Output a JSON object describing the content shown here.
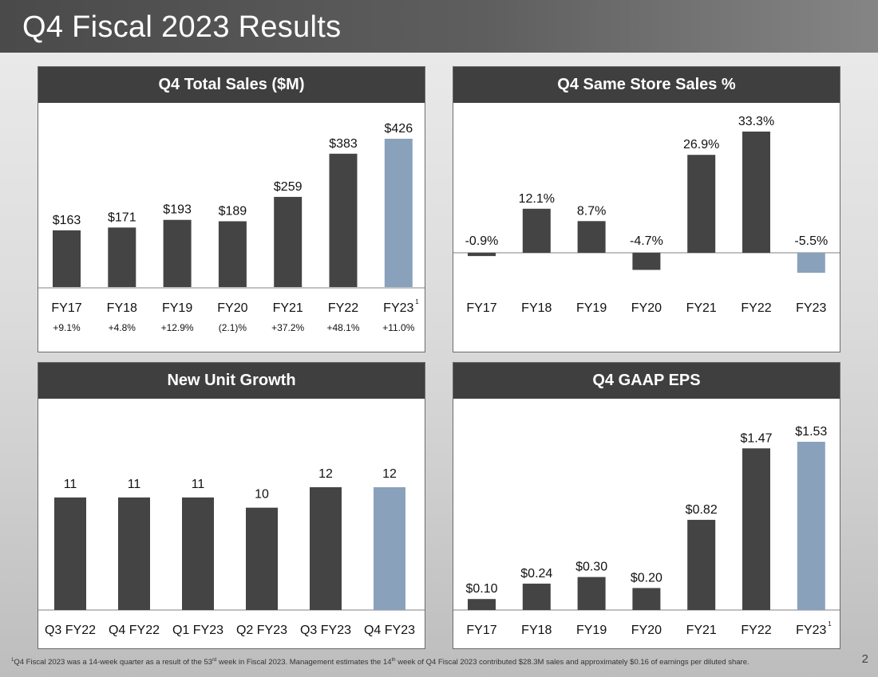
{
  "header": {
    "title": "Q4 Fiscal 2023 Results"
  },
  "colors": {
    "bar": "#444444",
    "highlight": "#8aa1bb",
    "axis": "#9a9a9a"
  },
  "chart_data": [
    {
      "id": "sales",
      "type": "bar",
      "title": "Q4 Total Sales ($M)",
      "categories": [
        "FY17",
        "FY18",
        "FY19",
        "FY20",
        "FY21",
        "FY22",
        "FY23"
      ],
      "category_superscripts": [
        "",
        "",
        "",
        "",
        "",
        "",
        "1"
      ],
      "values": [
        163,
        171,
        193,
        189,
        259,
        383,
        426
      ],
      "labels": [
        "$163",
        "$171",
        "$193",
        "$189",
        "$259",
        "$383",
        "$426"
      ],
      "growth": [
        "+9.1%",
        "+4.8%",
        "+12.9%",
        "(2.1)%",
        "+37.2%",
        "+48.1%",
        "+11.0%"
      ],
      "highlight_index": 6,
      "ylim": [
        0,
        426
      ]
    },
    {
      "id": "sss",
      "type": "bar",
      "title": "Q4 Same Store Sales %",
      "categories": [
        "FY17",
        "FY18",
        "FY19",
        "FY20",
        "FY21",
        "FY22",
        "FY23"
      ],
      "category_superscripts": [
        "",
        "",
        "",
        "",
        "",
        "",
        ""
      ],
      "values": [
        -0.9,
        12.1,
        8.7,
        -4.7,
        26.9,
        33.3,
        -5.5
      ],
      "labels": [
        "-0.9%",
        "12.1%",
        "8.7%",
        "-4.7%",
        "26.9%",
        "33.3%",
        "-5.5%"
      ],
      "highlight_index": 6,
      "ylim": [
        -5.5,
        33.3
      ]
    },
    {
      "id": "units",
      "type": "bar",
      "title": "New Unit Growth",
      "categories": [
        "Q3 FY22",
        "Q4 FY22",
        "Q1 FY23",
        "Q2 FY23",
        "Q3 FY23",
        "Q4 FY23"
      ],
      "category_superscripts": [
        "",
        "",
        "",
        "",
        "",
        ""
      ],
      "values": [
        11,
        11,
        11,
        10,
        12,
        12
      ],
      "labels": [
        "11",
        "11",
        "11",
        "10",
        "12",
        "12"
      ],
      "highlight_index": 5,
      "ylim": [
        0,
        12
      ]
    },
    {
      "id": "eps",
      "type": "bar",
      "title": "Q4 GAAP EPS",
      "categories": [
        "FY17",
        "FY18",
        "FY19",
        "FY20",
        "FY21",
        "FY22",
        "FY23"
      ],
      "category_superscripts": [
        "",
        "",
        "",
        "",
        "",
        "",
        "1"
      ],
      "values": [
        0.1,
        0.24,
        0.3,
        0.2,
        0.82,
        1.47,
        1.53
      ],
      "labels": [
        "$0.10",
        "$0.24",
        "$0.30",
        "$0.20",
        "$0.82",
        "$1.47",
        "$1.53"
      ],
      "highlight_index": 6,
      "ylim": [
        0,
        1.53
      ]
    }
  ],
  "footnote": {
    "marker": "1",
    "part1": "Q4 Fiscal 2023 was a 14-week quarter as a result of the 53",
    "sup1": "rd",
    "part2": " week in Fiscal 2023. Management estimates the 14",
    "sup2": "th",
    "part3": " week of Q4 Fiscal 2023 contributed $28.3M sales and approximately $0.16 of earnings per diluted share."
  },
  "page_number": "2"
}
